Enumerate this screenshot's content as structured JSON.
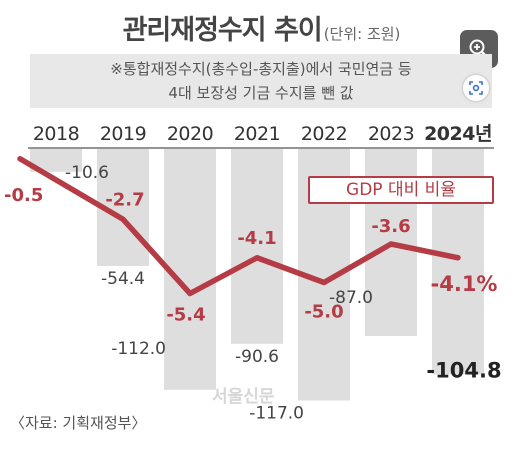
{
  "header": {
    "title": "관리재정수지 추이",
    "unit": "(단위: 조원)"
  },
  "note": {
    "line1": "※통합재정수지(총수입-총지출)에서 국민연금 등",
    "line2": "4대 보장성 기금 수지를 뺀 값"
  },
  "legend_label": "GDP 대비 비율",
  "source": "〈자료: 기획재정부〉",
  "watermark": "서울신문",
  "icons": {
    "zoom": "zoom-in-icon",
    "lens": "visual-search-icon"
  },
  "colors": {
    "bar": "#dedede",
    "line": "#b53b45",
    "ratio_text": "#b53b45",
    "value_text": "#333333"
  },
  "chart_data": {
    "type": "bar",
    "categories": [
      "2018",
      "2019",
      "2020",
      "2021",
      "2022",
      "2023",
      "2024년"
    ],
    "series": [
      {
        "name": "관리재정수지",
        "unit": "조원",
        "values": [
          -10.6,
          -54.4,
          -112.0,
          -90.6,
          -117.0,
          -87.0,
          -104.8
        ],
        "labels": [
          "-10.6",
          "-54.4",
          "-112.0",
          "-90.6",
          "-117.0",
          "-87.0",
          "-104.8"
        ]
      },
      {
        "name": "GDP 대비 비율",
        "unit": "%",
        "type": "line",
        "values": [
          -0.5,
          -2.7,
          -5.4,
          -4.1,
          -5.0,
          -3.6,
          -4.1
        ],
        "labels": [
          "-0.5",
          "-2.7",
          "-5.4",
          "-4.1",
          "-5.0",
          "-3.6",
          "-4.1%"
        ]
      }
    ],
    "ylim": [
      -120,
      0
    ],
    "ratio_ylim": [
      -6,
      0
    ],
    "highlight_last": true
  }
}
